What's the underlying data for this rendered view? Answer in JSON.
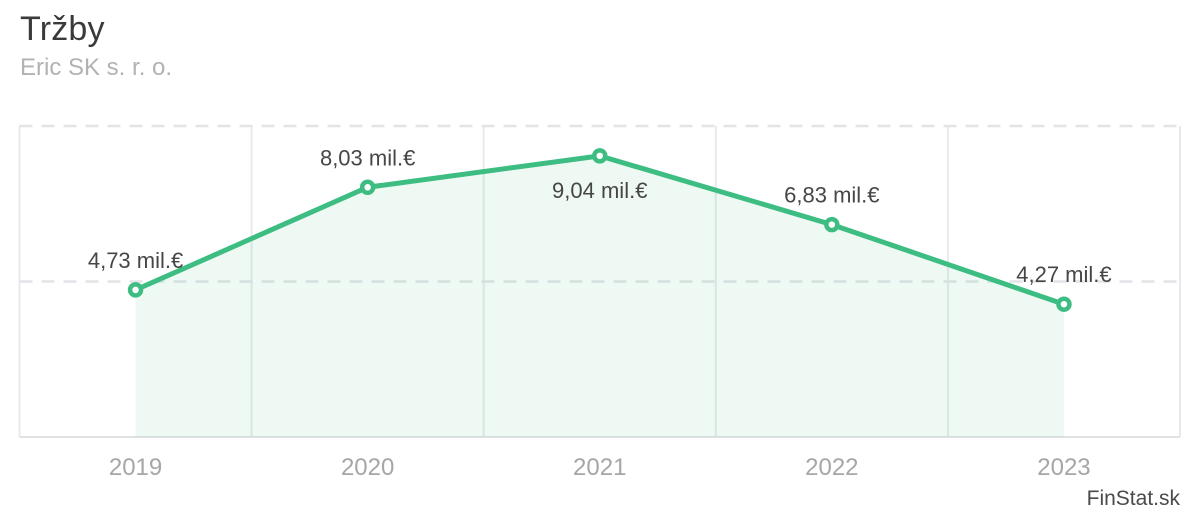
{
  "header": {
    "title": "Tržby",
    "subtitle": "Eric SK s. r. o."
  },
  "watermark": {
    "label": "FinStat.sk"
  },
  "chart_data": {
    "type": "line",
    "title": "Tržby",
    "subtitle": "Eric SK s. r. o.",
    "categories": [
      "2019",
      "2020",
      "2021",
      "2022",
      "2023"
    ],
    "values": [
      4.73,
      8.03,
      9.04,
      6.83,
      4.27
    ],
    "point_labels": [
      "4,73 mil.€",
      "8,03 mil.€",
      "9,04 mil.€",
      "6,83 mil.€",
      "4,27 mil.€"
    ],
    "label_placement": [
      "above",
      "above",
      "below",
      "above",
      "above"
    ],
    "unit": "mil.€",
    "xlabel": "",
    "ylabel": "",
    "ylim": [
      0,
      10
    ],
    "grid": {
      "horizontal_dashed_values": [
        5,
        10
      ],
      "baseline_value": 0,
      "vertical_category_boundaries": true
    },
    "legend": "none",
    "area_under_line": true,
    "colors": {
      "line": "#3dbd82",
      "marker_fill": "#ffffff",
      "area_fill": "rgba(61,189,130,0.09)",
      "grid_vertical": "#e7e9ec",
      "grid_dashed": "#e2e4e7",
      "axis_line": "#dfe1e4",
      "point_label": "#464646",
      "tick_label": "#a6a6a6",
      "title": "#3a3a3a",
      "subtitle": "#b2b2b2",
      "watermark": "#4a4a4a"
    }
  }
}
